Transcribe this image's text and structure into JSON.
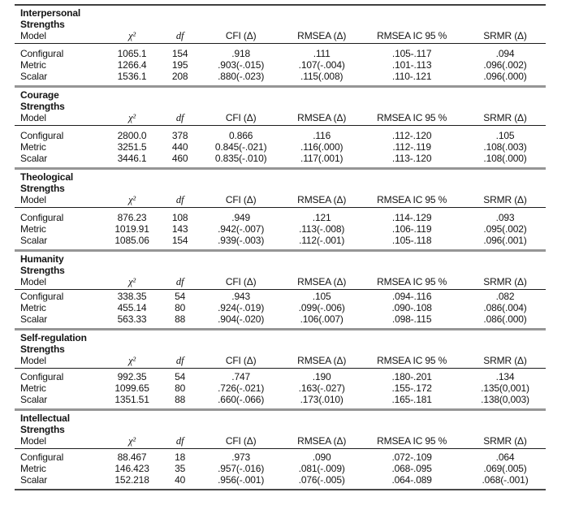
{
  "table": {
    "columns": [
      "Model",
      "χ²",
      "df",
      "CFI (Δ)",
      "RMSEA (Δ)",
      "RMSEA IC 95 %",
      "SRMR (Δ)"
    ],
    "sections": [
      {
        "title1": "Interpersonal",
        "title2": "Strengths",
        "rows": [
          [
            "Configural",
            "1065.1",
            "154",
            ".918",
            ".111",
            ".105-.117",
            ".094"
          ],
          [
            "Metric",
            "1266.4",
            "195",
            ".903(-.015)",
            ".107(-.004)",
            ".101-.113",
            ".096(.002)"
          ],
          [
            "Scalar",
            "1536.1",
            "208",
            ".880(-.023)",
            ".115(.008)",
            ".110-.121",
            ".096(.000)"
          ]
        ]
      },
      {
        "title1": "Courage",
        "title2": "Strengths",
        "rows": [
          [
            "Configural",
            "2800.0",
            "378",
            "0.866",
            ".116",
            ".112-.120",
            ".105"
          ],
          [
            "Metric",
            "3251.5",
            "440",
            "0.845(-.021)",
            ".116(.000)",
            ".112-.119",
            ".108(.003)"
          ],
          [
            "Scalar",
            "3446.1",
            "460",
            "0.835(-.010)",
            ".117(.001)",
            ".113-.120",
            ".108(.000)"
          ]
        ]
      },
      {
        "title1": "Theological",
        "title2": "Strengths",
        "rows": [
          [
            "Configural",
            "876.23",
            "108",
            ".949",
            ".121",
            ".114-.129",
            ".093"
          ],
          [
            "Metric",
            "1019.91",
            "143",
            ".942(-.007)",
            ".113(-.008)",
            ".106-.119",
            ".095(.002)"
          ],
          [
            "Scalar",
            "1085.06",
            "154",
            ".939(-.003)",
            ".112(-.001)",
            ".105-.118",
            ".096(.001)"
          ]
        ]
      },
      {
        "title1": "Humanity",
        "title2": "Strengths",
        "rows": [
          [
            "Configural",
            "338.35",
            "54",
            ".943",
            ".105",
            ".094-.116",
            ".082"
          ],
          [
            "Metric",
            "455.14",
            "80",
            ".924(-.019)",
            ".099(-.006)",
            ".090-.108",
            ".086(.004)"
          ],
          [
            "Scalar",
            "563.33",
            "88",
            ".904(-.020)",
            ".106(.007)",
            ".098-.115",
            ".086(.000)"
          ]
        ]
      },
      {
        "title1": "Self-regulation",
        "title2": "Strengths",
        "rows": [
          [
            "Configural",
            "992.35",
            "54",
            ".747",
            ".190",
            ".180-.201",
            ".134"
          ],
          [
            "Metric",
            "1099.65",
            "80",
            ".726(-.021)",
            ".163(-.027)",
            ".155-.172",
            ".135(0,001)"
          ],
          [
            "Scalar",
            "1351.51",
            "88",
            ".660(-.066)",
            ".173(.010)",
            ".165-.181",
            ".138(0,003)"
          ]
        ]
      },
      {
        "title1": "Intellectual",
        "title2": "Strengths",
        "rows": [
          [
            "Configural",
            "88.467",
            "18",
            ".973",
            ".090",
            ".072-.109",
            ".064"
          ],
          [
            "Metric",
            "146.423",
            "35",
            ".957(-.016)",
            ".081(-.009)",
            ".068-.095",
            ".069(.005)"
          ],
          [
            "Scalar",
            "152.218",
            "40",
            ".956(-.001)",
            ".076(-.005)",
            ".064-.089",
            ".068(-.001)"
          ]
        ]
      }
    ]
  }
}
